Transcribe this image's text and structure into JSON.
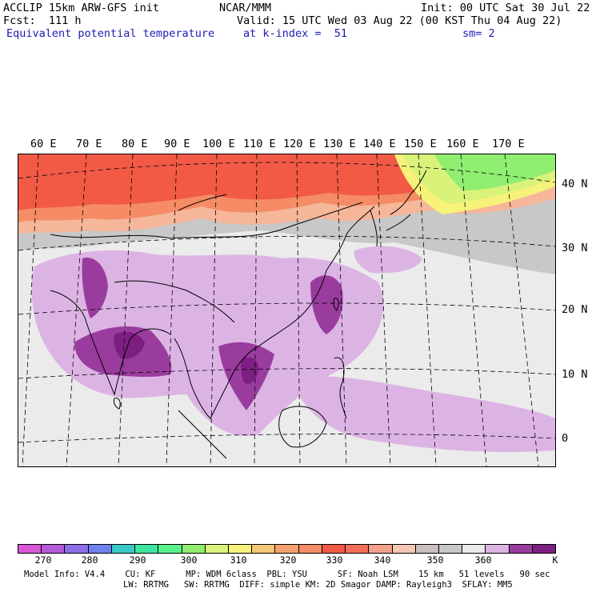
{
  "header": {
    "left_line1": "ACCLIP 15km ARW-GFS init",
    "left_line2": "Fcst:  111 h",
    "left_line3": "Equivalent potential temperature",
    "center_line1": "NCAR/MMM",
    "right_line1": "Init: 00 UTC Sat 30 Jul 22",
    "valid_line": "Valid: 15 UTC Wed 03 Aug 22 (00 KST Thu 04 Aug 22)",
    "level_line": "at k-index =  51",
    "smooth_line": "sm= 2"
  },
  "map": {
    "longitude_labels": [
      "60 E",
      "70 E",
      "80 E",
      "90 E",
      "100 E",
      "110 E",
      "120 E",
      "130 E",
      "140 E",
      "150 E",
      "160 E",
      "170 E"
    ],
    "latitude_labels": [
      "40 N",
      "30 N",
      "20 N",
      "10 N",
      "0"
    ],
    "field_colors": {
      "warm_north": "#f25a46",
      "orange_belt": "#f58c66",
      "peach": "#f5b69a",
      "grey": "#c8c8c8",
      "light_grey": "#ebebeb",
      "light_purple": "#dcb4e4",
      "purple": "#9a3c9e",
      "dark_purple": "#7d1e82",
      "green": "#90ee70",
      "yellow_green": "#d9f27a",
      "yellow": "#f7f27a"
    },
    "coastline_color": "#000000",
    "grid_line_style": "dashed"
  },
  "colorbar": {
    "colors": [
      "#d957d9",
      "#b55ad9",
      "#8c6ee6",
      "#6e82f0",
      "#3cc8c8",
      "#3ce6a0",
      "#5af08c",
      "#90ee70",
      "#d9f27a",
      "#f7f27a",
      "#f5c878",
      "#f5a26e",
      "#f58c66",
      "#f25a46",
      "#f56e5a",
      "#f5a08c",
      "#f5c8b4",
      "#c8c0bc",
      "#c8c8c8",
      "#ebebeb",
      "#dcb4e4",
      "#9a3c9e",
      "#7d1e82"
    ],
    "tick_labels": [
      "270",
      "280",
      "290",
      "300",
      "310",
      "320",
      "330",
      "340",
      "350",
      "360"
    ],
    "unit": "K"
  },
  "footer": {
    "line1": "Model Info: V4.4    CU: KF      MP: WDM 6class  PBL: YSU      SF: Noah LSM    15 km   51 levels   90 sec",
    "line2": "LW: RRTMG   SW: RRTMG  DIFF: simple KM: 2D Smagor DAMP: Rayleigh3  SFLAY: MM5"
  }
}
